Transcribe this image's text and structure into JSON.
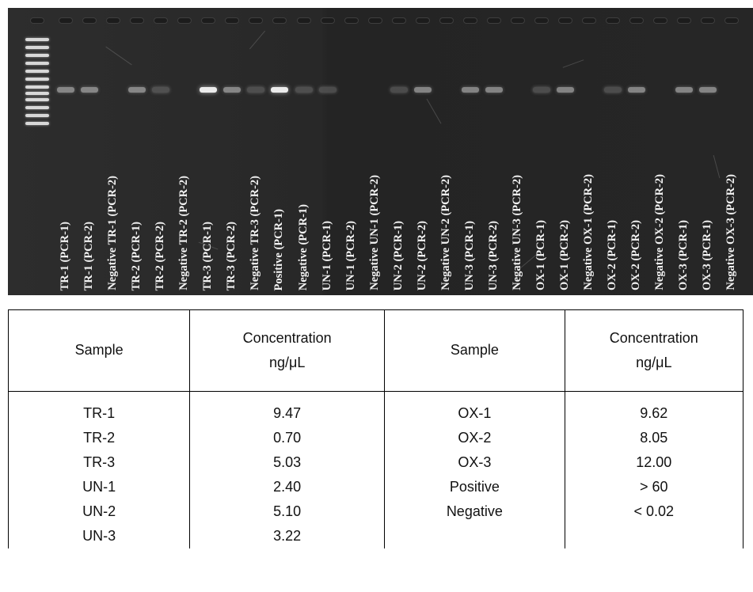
{
  "gel": {
    "lanes": [
      {
        "label": "TR-1 (PCR-1)",
        "band": "medium"
      },
      {
        "label": "TR-1 (PCR-2)",
        "band": "medium"
      },
      {
        "label": "Negative TR-1 (PCR-2)",
        "band": "none"
      },
      {
        "label": "TR-2 (PCR-1)",
        "band": "medium"
      },
      {
        "label": "TR-2 (PCR-2)",
        "band": "faint"
      },
      {
        "label": "Negative TR-2 (PCR-2)",
        "band": "none"
      },
      {
        "label": "TR-3 (PCR-1)",
        "band": "strong"
      },
      {
        "label": "TR-3 (PCR-2)",
        "band": "medium"
      },
      {
        "label": "Negative TR-3 (PCR-2)",
        "band": "faint"
      },
      {
        "label": "Positive  (PCR-1)",
        "band": "strong"
      },
      {
        "label": "Negative  (PCR-1)",
        "band": "faint"
      },
      {
        "label": "UN-1 (PCR-1)",
        "band": "faint"
      },
      {
        "label": "UN-1 (PCR-2)",
        "band": "none"
      },
      {
        "label": "Negative UN-1 (PCR-2)",
        "band": "none"
      },
      {
        "label": "UN-2 (PCR-1)",
        "band": "faint"
      },
      {
        "label": "UN-2 (PCR-2)",
        "band": "medium"
      },
      {
        "label": "Negative UN-2 (PCR-2)",
        "band": "none"
      },
      {
        "label": "UN-3 (PCR-1)",
        "band": "medium"
      },
      {
        "label": "UN-3 (PCR-2)",
        "band": "medium"
      },
      {
        "label": "Negative UN-3 (PCR-2)",
        "band": "none"
      },
      {
        "label": "OX-1 (PCR-1)",
        "band": "faint"
      },
      {
        "label": "OX-1 (PCR-2)",
        "band": "medium"
      },
      {
        "label": "Negative OX-1 (PCR-2)",
        "band": "none"
      },
      {
        "label": "OX-2 (PCR-1)",
        "band": "faint"
      },
      {
        "label": "OX-2 (PCR-2)",
        "band": "medium"
      },
      {
        "label": "Negative OX-2 (PCR-2)",
        "band": "none"
      },
      {
        "label": "OX-3 (PCR-1)",
        "band": "medium"
      },
      {
        "label": "OX-3 (PCR-1)",
        "band": "medium"
      },
      {
        "label": "Negative OX-3 (PCR-2)",
        "band": "none"
      }
    ]
  },
  "table": {
    "headers": {
      "sample_left": "Sample",
      "conc_left_line1": "Concentration",
      "conc_left_line2": "ng/μL",
      "sample_right": "Sample",
      "conc_right_line1": "Concentration",
      "conc_right_line2": "ng/μL"
    },
    "rows": [
      {
        "s1": "TR-1",
        "c1": "9.47",
        "s2": "OX-1",
        "c2": "9.62"
      },
      {
        "s1": "TR-2",
        "c1": "0.70",
        "s2": "OX-2",
        "c2": "8.05"
      },
      {
        "s1": "TR-3",
        "c1": "5.03",
        "s2": "OX-3",
        "c2": "12.00"
      },
      {
        "s1": "UN-1",
        "c1": "2.40",
        "s2": "Positive",
        "c2": "> 60"
      },
      {
        "s1": "UN-2",
        "c1": "5.10",
        "s2": "Negative",
        "c2": "< 0.02"
      },
      {
        "s1": "UN-3",
        "c1": "3.22",
        "s2": "",
        "c2": ""
      }
    ]
  }
}
